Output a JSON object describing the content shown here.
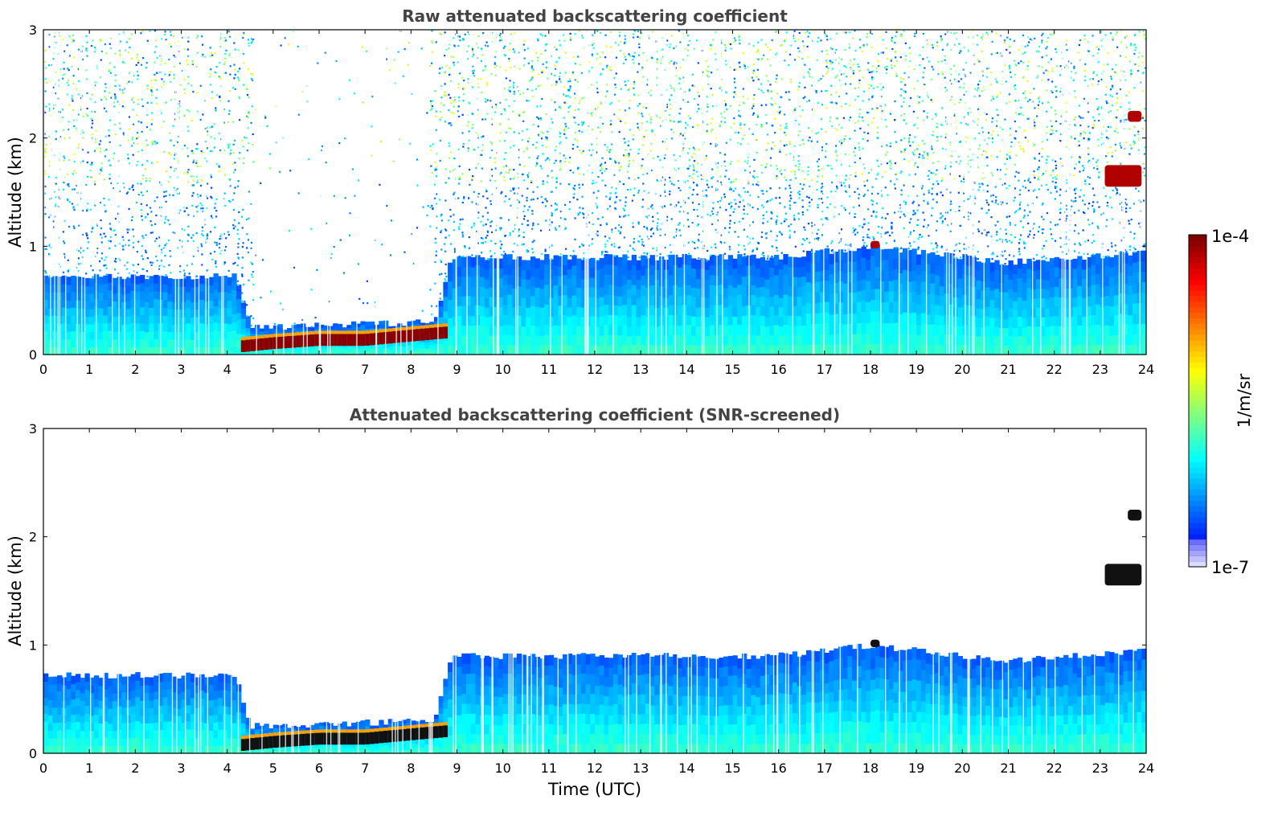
{
  "chart_data": [
    {
      "type": "heatmap",
      "title": "Raw attenuated backscattering coefficient",
      "xlabel": "",
      "ylabel": "Altitude (km)",
      "xlim": [
        0,
        24
      ],
      "ylim": [
        0,
        3
      ],
      "xticks": [
        "0",
        "1",
        "2",
        "3",
        "4",
        "5",
        "6",
        "7",
        "8",
        "9",
        "10",
        "11",
        "12",
        "13",
        "14",
        "15",
        "16",
        "17",
        "18",
        "19",
        "20",
        "21",
        "22",
        "23",
        "24"
      ],
      "yticks": [
        "0",
        "1",
        "2",
        "3"
      ],
      "layers": [
        {
          "x": [
            0,
            4.2,
            4.5,
            8.5,
            8.9,
            16,
            18,
            21,
            24
          ],
          "top_km": [
            0.72,
            0.72,
            0.25,
            0.3,
            0.9,
            0.9,
            1.0,
            0.85,
            0.95
          ]
        },
        {
          "name": "aerosol_layer_strong",
          "x": [
            4.3,
            5,
            6,
            7,
            8,
            8.8
          ],
          "center_km": [
            0.07,
            0.1,
            0.13,
            0.13,
            0.17,
            0.2
          ]
        }
      ],
      "features": [
        {
          "x": [
            23.1,
            23.9
          ],
          "y_km": [
            1.55,
            1.75
          ]
        },
        {
          "x": [
            23.6,
            23.9
          ],
          "y_km": [
            2.15,
            2.25
          ]
        },
        {
          "x": [
            18,
            18.2
          ],
          "y_km": [
            0.98,
            1.05
          ]
        }
      ],
      "noise_above_layer": true
    },
    {
      "type": "heatmap",
      "title": "Attenuated backscattering coefficient (SNR-screened)",
      "xlabel": "Time (UTC)",
      "ylabel": "Altitude (km)",
      "xlim": [
        0,
        24
      ],
      "ylim": [
        0,
        3
      ],
      "xticks": [
        "0",
        "1",
        "2",
        "3",
        "4",
        "5",
        "6",
        "7",
        "8",
        "9",
        "10",
        "11",
        "12",
        "13",
        "14",
        "15",
        "16",
        "17",
        "18",
        "19",
        "20",
        "21",
        "22",
        "23",
        "24"
      ],
      "yticks": [
        "0",
        "1",
        "2",
        "3"
      ],
      "noise_above_layer": false
    }
  ],
  "colorbar": {
    "scale": "log",
    "min_label": "1e-7",
    "max_label": "1e-4",
    "label": "1/m/sr",
    "colormap": "jet"
  }
}
